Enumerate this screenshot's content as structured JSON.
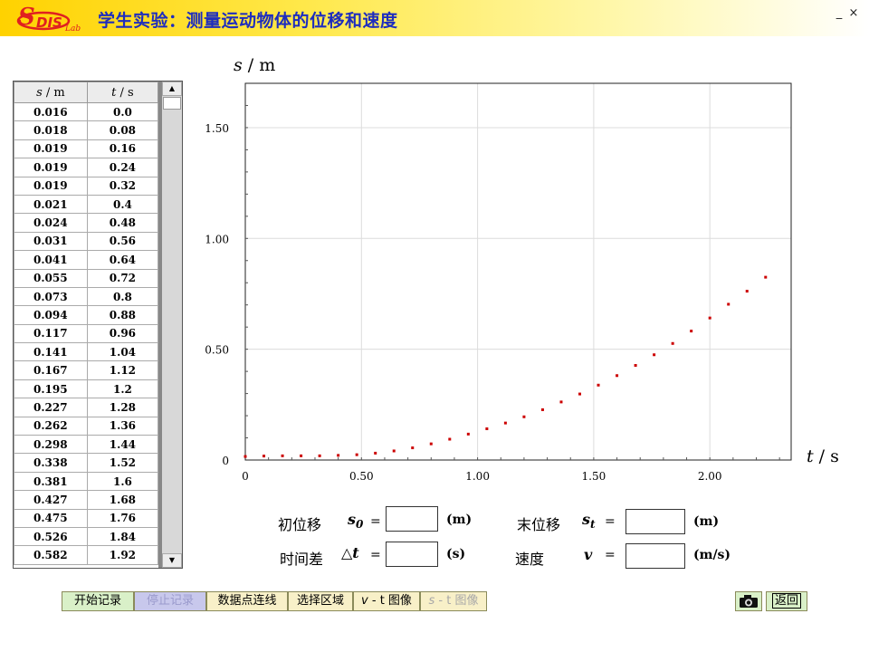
{
  "window": {
    "title": "学生实验：测量运动物体的位移和速度",
    "minimize_label": "_",
    "close_label": "×",
    "logo_letter": "S",
    "logo_text": "DIS",
    "logo_sub": "Lab"
  },
  "table": {
    "header_s_var": "s",
    "header_s_unit": " / m",
    "header_t_var": "t",
    "header_t_unit": " / s",
    "rows": [
      [
        "0.016",
        "0.0"
      ],
      [
        "0.018",
        "0.08"
      ],
      [
        "0.019",
        "0.16"
      ],
      [
        "0.019",
        "0.24"
      ],
      [
        "0.019",
        "0.32"
      ],
      [
        "0.021",
        "0.4"
      ],
      [
        "0.024",
        "0.48"
      ],
      [
        "0.031",
        "0.56"
      ],
      [
        "0.041",
        "0.64"
      ],
      [
        "0.055",
        "0.72"
      ],
      [
        "0.073",
        "0.8"
      ],
      [
        "0.094",
        "0.88"
      ],
      [
        "0.117",
        "0.96"
      ],
      [
        "0.141",
        "1.04"
      ],
      [
        "0.167",
        "1.12"
      ],
      [
        "0.195",
        "1.2"
      ],
      [
        "0.227",
        "1.28"
      ],
      [
        "0.262",
        "1.36"
      ],
      [
        "0.298",
        "1.44"
      ],
      [
        "0.338",
        "1.52"
      ],
      [
        "0.381",
        "1.6"
      ],
      [
        "0.427",
        "1.68"
      ],
      [
        "0.475",
        "1.76"
      ],
      [
        "0.526",
        "1.84"
      ],
      [
        "0.582",
        "1.92"
      ]
    ],
    "scroll_up": "▲",
    "scroll_down": "▼"
  },
  "chart_data": {
    "type": "scatter",
    "ylabel_var": "s",
    "ylabel_unit": " / m",
    "xlabel_var": "t",
    "xlabel_unit": " / s",
    "xlim": [
      0,
      2.35
    ],
    "ylim": [
      0,
      1.7
    ],
    "x_ticks": [
      0,
      0.5,
      1.0,
      1.5,
      2.0
    ],
    "x_tick_labels": [
      "0",
      "0.50",
      "1.00",
      "1.50",
      "2.00"
    ],
    "y_ticks": [
      0,
      0.5,
      1.0,
      1.5
    ],
    "y_tick_labels": [
      "0",
      "0.50",
      "1.00",
      "1.50"
    ],
    "grid": true,
    "point_color": "#cc0000",
    "x": [
      0.0,
      0.08,
      0.16,
      0.24,
      0.32,
      0.4,
      0.48,
      0.56,
      0.64,
      0.72,
      0.8,
      0.88,
      0.96,
      1.04,
      1.12,
      1.2,
      1.28,
      1.36,
      1.44,
      1.52,
      1.6,
      1.68,
      1.76,
      1.84,
      1.92,
      2.0,
      2.08,
      2.16,
      2.24
    ],
    "y": [
      0.016,
      0.018,
      0.019,
      0.019,
      0.019,
      0.021,
      0.024,
      0.031,
      0.041,
      0.055,
      0.073,
      0.094,
      0.117,
      0.141,
      0.167,
      0.195,
      0.227,
      0.262,
      0.298,
      0.338,
      0.381,
      0.427,
      0.475,
      0.526,
      0.582,
      0.641,
      0.703,
      0.762,
      0.825
    ]
  },
  "form": {
    "initial_label": "初位移",
    "initial_sym": "s",
    "initial_sub": "0",
    "final_label": "末位移",
    "final_sym": "s",
    "final_sub": "t",
    "dt_label": "时间差",
    "dt_sym": "△t",
    "speed_label": "速度",
    "speed_sym": "v",
    "eq": "=",
    "unit_m": "(m)",
    "unit_s": "(s)",
    "unit_ms": "(m/s)",
    "initial_value": "",
    "final_value": "",
    "dt_value": "",
    "speed_value": ""
  },
  "buttons": {
    "start": "开始记录",
    "stop": "停止记录",
    "connect": "数据点连线",
    "select": "选择区域",
    "vt_var": "v",
    "vt_rest": " - t 图像",
    "st_var": "s",
    "st_rest": " - t 图像",
    "back": "返回"
  }
}
